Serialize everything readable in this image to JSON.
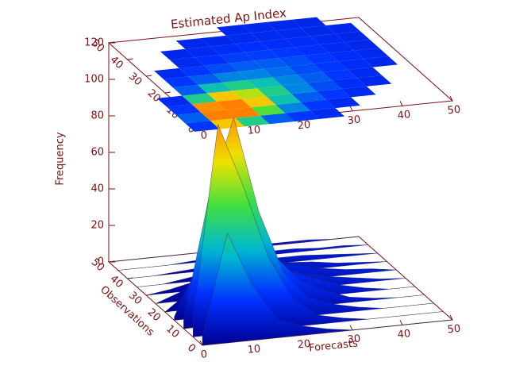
{
  "chart_data": {
    "type": "surface",
    "title": "Estimated Ap Index",
    "xlabel": "Forecasts",
    "ylabel": "Observations",
    "zlabel": "Frequency",
    "x": [
      0,
      5,
      10,
      15,
      20,
      25,
      30,
      35,
      40,
      45,
      50
    ],
    "y": [
      0,
      5,
      10,
      15,
      20,
      25,
      30,
      35,
      40,
      45,
      50
    ],
    "values": [
      [
        5,
        60,
        30,
        10,
        5,
        2,
        0,
        0,
        0,
        0,
        0
      ],
      [
        10,
        115,
        80,
        40,
        15,
        5,
        2,
        0,
        0,
        0,
        0
      ],
      [
        5,
        70,
        113,
        60,
        25,
        10,
        5,
        2,
        0,
        0,
        0
      ],
      [
        2,
        30,
        60,
        50,
        30,
        15,
        8,
        3,
        1,
        0,
        0
      ],
      [
        0,
        10,
        25,
        30,
        25,
        15,
        10,
        5,
        2,
        0,
        0
      ],
      [
        0,
        5,
        10,
        15,
        15,
        12,
        8,
        5,
        3,
        1,
        0
      ],
      [
        0,
        2,
        5,
        8,
        10,
        10,
        8,
        5,
        3,
        2,
        0
      ],
      [
        0,
        0,
        2,
        4,
        6,
        6,
        5,
        4,
        2,
        1,
        0
      ],
      [
        0,
        0,
        1,
        2,
        3,
        4,
        3,
        3,
        2,
        1,
        0
      ],
      [
        0,
        0,
        0,
        1,
        1,
        2,
        2,
        2,
        1,
        1,
        0
      ],
      [
        0,
        0,
        0,
        0,
        0,
        1,
        1,
        1,
        1,
        0,
        0
      ]
    ],
    "xlim": [
      0,
      50
    ],
    "ylim": [
      0,
      50
    ],
    "zlim": [
      0,
      120
    ],
    "xticks": [
      0,
      10,
      20,
      30,
      40,
      50
    ],
    "yticks": [
      0,
      10,
      20,
      30,
      40,
      50
    ],
    "zticks": [
      0,
      20,
      40,
      60,
      80,
      100,
      120
    ]
  }
}
